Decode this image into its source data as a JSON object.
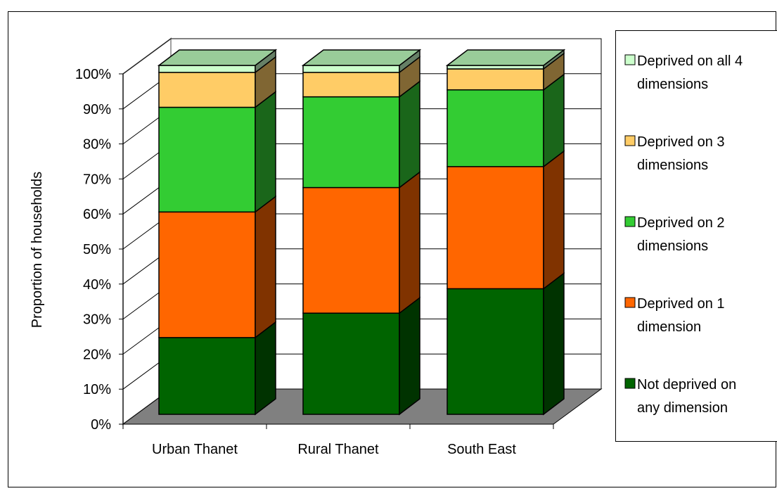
{
  "chart_data": {
    "type": "bar",
    "stacked": true,
    "three_d": true,
    "title": "",
    "xlabel": "",
    "ylabel": "Proportion of households",
    "ylim": [
      0,
      100
    ],
    "y_ticks": [
      "0%",
      "10%",
      "20%",
      "30%",
      "40%",
      "50%",
      "60%",
      "70%",
      "80%",
      "90%",
      "100%"
    ],
    "categories": [
      "Urban Thanet",
      "Rural Thanet",
      "South East"
    ],
    "series": [
      {
        "name": "Not deprived on any dimension",
        "values": [
          22,
          29,
          36
        ],
        "color": "#006400",
        "side_color": "#003300"
      },
      {
        "name": "Deprived on 1 dimension",
        "values": [
          36,
          36,
          35
        ],
        "color": "#ff6600",
        "side_color": "#803300"
      },
      {
        "name": "Deprived on 2 dimensions",
        "values": [
          30,
          26,
          22
        ],
        "color": "#33cc33",
        "side_color": "#1a661a"
      },
      {
        "name": "Deprived on 3 dimensions",
        "values": [
          10,
          7,
          6
        ],
        "color": "#ffcc66",
        "side_color": "#806633"
      },
      {
        "name": "Deprived on all 4 dimensions",
        "values": [
          2,
          2,
          1
        ],
        "color": "#ccffcc",
        "side_color": "#668066"
      }
    ],
    "legend_position": "right",
    "legend_order": [
      {
        "name": "Deprived on all 4 dimensions",
        "lines": [
          "Deprived on all 4",
          "dimensions"
        ]
      },
      {
        "name": "Deprived on 3 dimensions",
        "lines": [
          "Deprived on 3",
          "dimensions"
        ]
      },
      {
        "name": "Deprived on 2 dimensions",
        "lines": [
          "Deprived on 2",
          "dimensions"
        ]
      },
      {
        "name": "Deprived on 1 dimension",
        "lines": [
          "Deprived on 1",
          "dimension"
        ]
      },
      {
        "name": "Not deprived on any dimension",
        "lines": [
          "Not deprived on",
          "any dimension"
        ]
      }
    ],
    "grid": true,
    "wall_color": "#ffffff",
    "floor_color": "#808080"
  }
}
